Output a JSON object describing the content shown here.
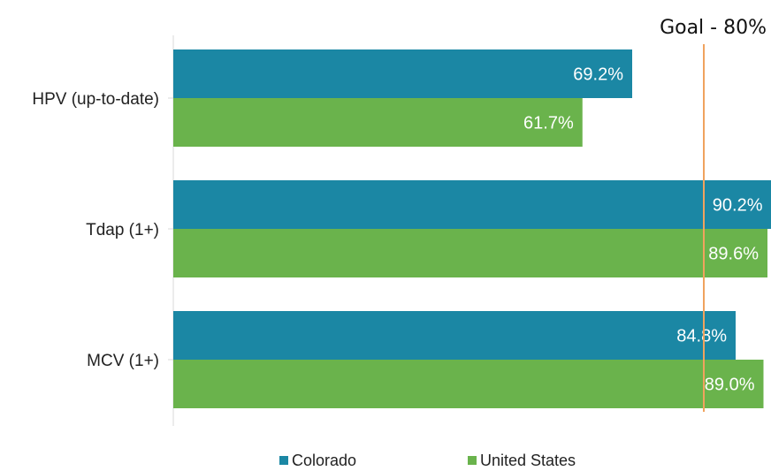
{
  "chart_data": {
    "type": "bar",
    "orientation": "horizontal",
    "categories": [
      "HPV (up-to-date)",
      "Tdap (1+)",
      "MCV (1+)"
    ],
    "series": [
      {
        "name": "Colorado",
        "values": [
          69.2,
          90.2,
          84.8
        ],
        "labels": [
          "69.2%",
          "90.2%",
          "84.8%"
        ],
        "color": "#1b87a4"
      },
      {
        "name": "United States",
        "values": [
          61.7,
          89.6,
          89.0
        ],
        "labels": [
          "61.7%",
          "89.6%",
          "89.0%"
        ],
        "color": "#6ab34c"
      }
    ],
    "goal": {
      "label": "Goal - 80%",
      "value": 80,
      "color": "#f0a35e"
    },
    "xlim": [
      0,
      90
    ],
    "legend": "bottom",
    "grid": false
  }
}
